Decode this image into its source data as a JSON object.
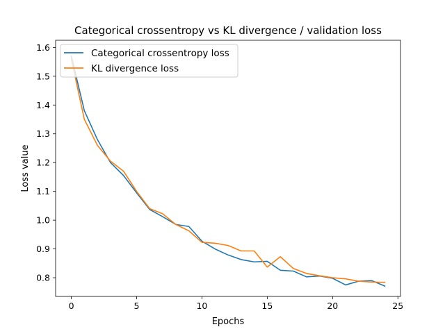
{
  "chart_data": {
    "type": "line",
    "title": "Categorical crossentropy vs KL divergence / validation loss",
    "xlabel": "Epochs",
    "ylabel": "Loss value",
    "xlim": [
      -1.2,
      25.2
    ],
    "ylim": [
      0.735,
      1.625
    ],
    "xticks": [
      0,
      5,
      10,
      15,
      20,
      25
    ],
    "yticks": [
      0.8,
      0.9,
      1.0,
      1.1,
      1.2,
      1.3,
      1.4,
      1.5,
      1.6
    ],
    "grid": false,
    "legend": "upper-left",
    "x": [
      0,
      1,
      2,
      3,
      4,
      5,
      6,
      7,
      8,
      9,
      10,
      11,
      12,
      13,
      14,
      15,
      16,
      17,
      18,
      19,
      20,
      21,
      22,
      23,
      24
    ],
    "series": [
      {
        "name": "Categorical crossentropy loss",
        "color": "#1f77b4",
        "values": [
          1.57,
          1.38,
          1.28,
          1.2,
          1.155,
          1.095,
          1.037,
          1.012,
          0.985,
          0.978,
          0.927,
          0.9,
          0.879,
          0.863,
          0.855,
          0.857,
          0.826,
          0.823,
          0.803,
          0.806,
          0.798,
          0.775,
          0.788,
          0.79,
          0.771
        ]
      },
      {
        "name": "KL divergence loss",
        "color": "#ff7f0e",
        "values": [
          1.56,
          1.35,
          1.26,
          1.205,
          1.17,
          1.1,
          1.04,
          1.022,
          0.985,
          0.963,
          0.923,
          0.92,
          0.912,
          0.893,
          0.893,
          0.837,
          0.873,
          0.832,
          0.815,
          0.807,
          0.8,
          0.796,
          0.788,
          0.785,
          0.784
        ]
      }
    ]
  }
}
